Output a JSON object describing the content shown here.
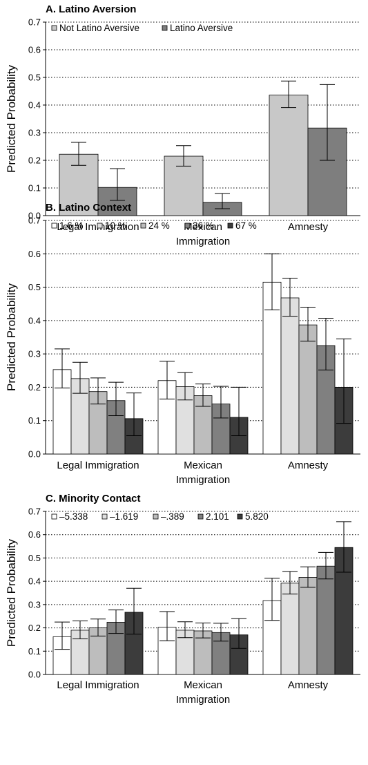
{
  "colors": {
    "bar_stroke": "#000000",
    "grid": "#000000",
    "error_bar": "#000000"
  },
  "chart_data": [
    {
      "type": "bar",
      "title": "A. Latino Aversion",
      "ylabel": "Predicted Probability",
      "ylim": [
        0,
        0.7
      ],
      "yticks": [
        "0.0",
        "0.1",
        "0.2",
        "0.3",
        "0.4",
        "0.5",
        "0.6",
        "0.7"
      ],
      "grid": true,
      "legend_position": "top-left",
      "categories": [
        [
          "Legal Immigration"
        ],
        [
          "Mexican",
          "Immigration"
        ],
        [
          "Amnesty"
        ]
      ],
      "series": [
        {
          "name": "Not Latino Aversive",
          "color": "#c8c8c8",
          "values": [
            0.222,
            0.215,
            0.436
          ],
          "lower": [
            0.182,
            0.179,
            0.391
          ],
          "upper": [
            0.265,
            0.253,
            0.487
          ]
        },
        {
          "name": "Latino Aversive",
          "color": "#7e7e7e",
          "values": [
            0.102,
            0.048,
            0.317
          ],
          "lower": [
            0.055,
            0.025,
            0.2
          ],
          "upper": [
            0.17,
            0.08,
            0.474
          ]
        }
      ]
    },
    {
      "type": "bar",
      "title": "B. Latino Context",
      "ylabel": "Predicted Probability",
      "ylim": [
        0,
        0.7
      ],
      "yticks": [
        "0.0",
        "0.1",
        "0.2",
        "0.3",
        "0.4",
        "0.5",
        "0.6",
        "0.7"
      ],
      "grid": true,
      "legend_position": "top-left",
      "categories": [
        [
          "Legal Immigration"
        ],
        [
          "Mexican",
          "Immigration"
        ],
        [
          "Amnesty"
        ]
      ],
      "series": [
        {
          "name": "1.6 %",
          "color": "#ffffff",
          "values": [
            0.253,
            0.22,
            0.515
          ],
          "lower": [
            0.198,
            0.165,
            0.432
          ],
          "upper": [
            0.315,
            0.278,
            0.6
          ]
        },
        {
          "name": "10 %",
          "color": "#e0e0e0",
          "values": [
            0.226,
            0.202,
            0.468
          ],
          "lower": [
            0.182,
            0.162,
            0.413
          ],
          "upper": [
            0.275,
            0.244,
            0.527
          ]
        },
        {
          "name": "24 %",
          "color": "#bdbdbd",
          "values": [
            0.187,
            0.175,
            0.387
          ],
          "lower": [
            0.15,
            0.143,
            0.338
          ],
          "upper": [
            0.228,
            0.21,
            0.44
          ]
        },
        {
          "name": "36 %",
          "color": "#808080",
          "values": [
            0.16,
            0.15,
            0.325
          ],
          "lower": [
            0.115,
            0.108,
            0.252
          ],
          "upper": [
            0.215,
            0.203,
            0.407
          ]
        },
        {
          "name": "67 %",
          "color": "#3c3c3c",
          "values": [
            0.106,
            0.11,
            0.2
          ],
          "lower": [
            0.055,
            0.055,
            0.092
          ],
          "upper": [
            0.183,
            0.2,
            0.345
          ]
        }
      ]
    },
    {
      "type": "bar",
      "title": "C. Minority Contact",
      "ylabel": "Predicted Probability",
      "ylim": [
        0,
        0.7
      ],
      "yticks": [
        "0.0",
        "0.1",
        "0.2",
        "0.3",
        "0.4",
        "0.5",
        "0.6",
        "0.7"
      ],
      "grid": true,
      "legend_position": "top-left",
      "categories": [
        [
          "Legal Immigration"
        ],
        [
          "Mexican",
          "Immigration"
        ],
        [
          "Amnesty"
        ]
      ],
      "series": [
        {
          "name": "–5.338",
          "color": "#ffffff",
          "values": [
            0.162,
            0.203,
            0.317
          ],
          "lower": [
            0.108,
            0.145,
            0.232
          ],
          "upper": [
            0.225,
            0.27,
            0.413
          ]
        },
        {
          "name": "–1.619",
          "color": "#e0e0e0",
          "values": [
            0.19,
            0.19,
            0.392
          ],
          "lower": [
            0.153,
            0.158,
            0.345
          ],
          "upper": [
            0.23,
            0.226,
            0.442
          ]
        },
        {
          "name": "–.389",
          "color": "#bdbdbd",
          "values": [
            0.2,
            0.187,
            0.417
          ],
          "lower": [
            0.165,
            0.157,
            0.374
          ],
          "upper": [
            0.238,
            0.221,
            0.462
          ]
        },
        {
          "name": "2.101",
          "color": "#808080",
          "values": [
            0.224,
            0.18,
            0.465
          ],
          "lower": [
            0.176,
            0.143,
            0.41
          ],
          "upper": [
            0.277,
            0.22,
            0.524
          ]
        },
        {
          "name": "5.820",
          "color": "#3c3c3c",
          "values": [
            0.267,
            0.17,
            0.545
          ],
          "lower": [
            0.173,
            0.112,
            0.439
          ],
          "upper": [
            0.37,
            0.24,
            0.656
          ]
        }
      ]
    }
  ]
}
